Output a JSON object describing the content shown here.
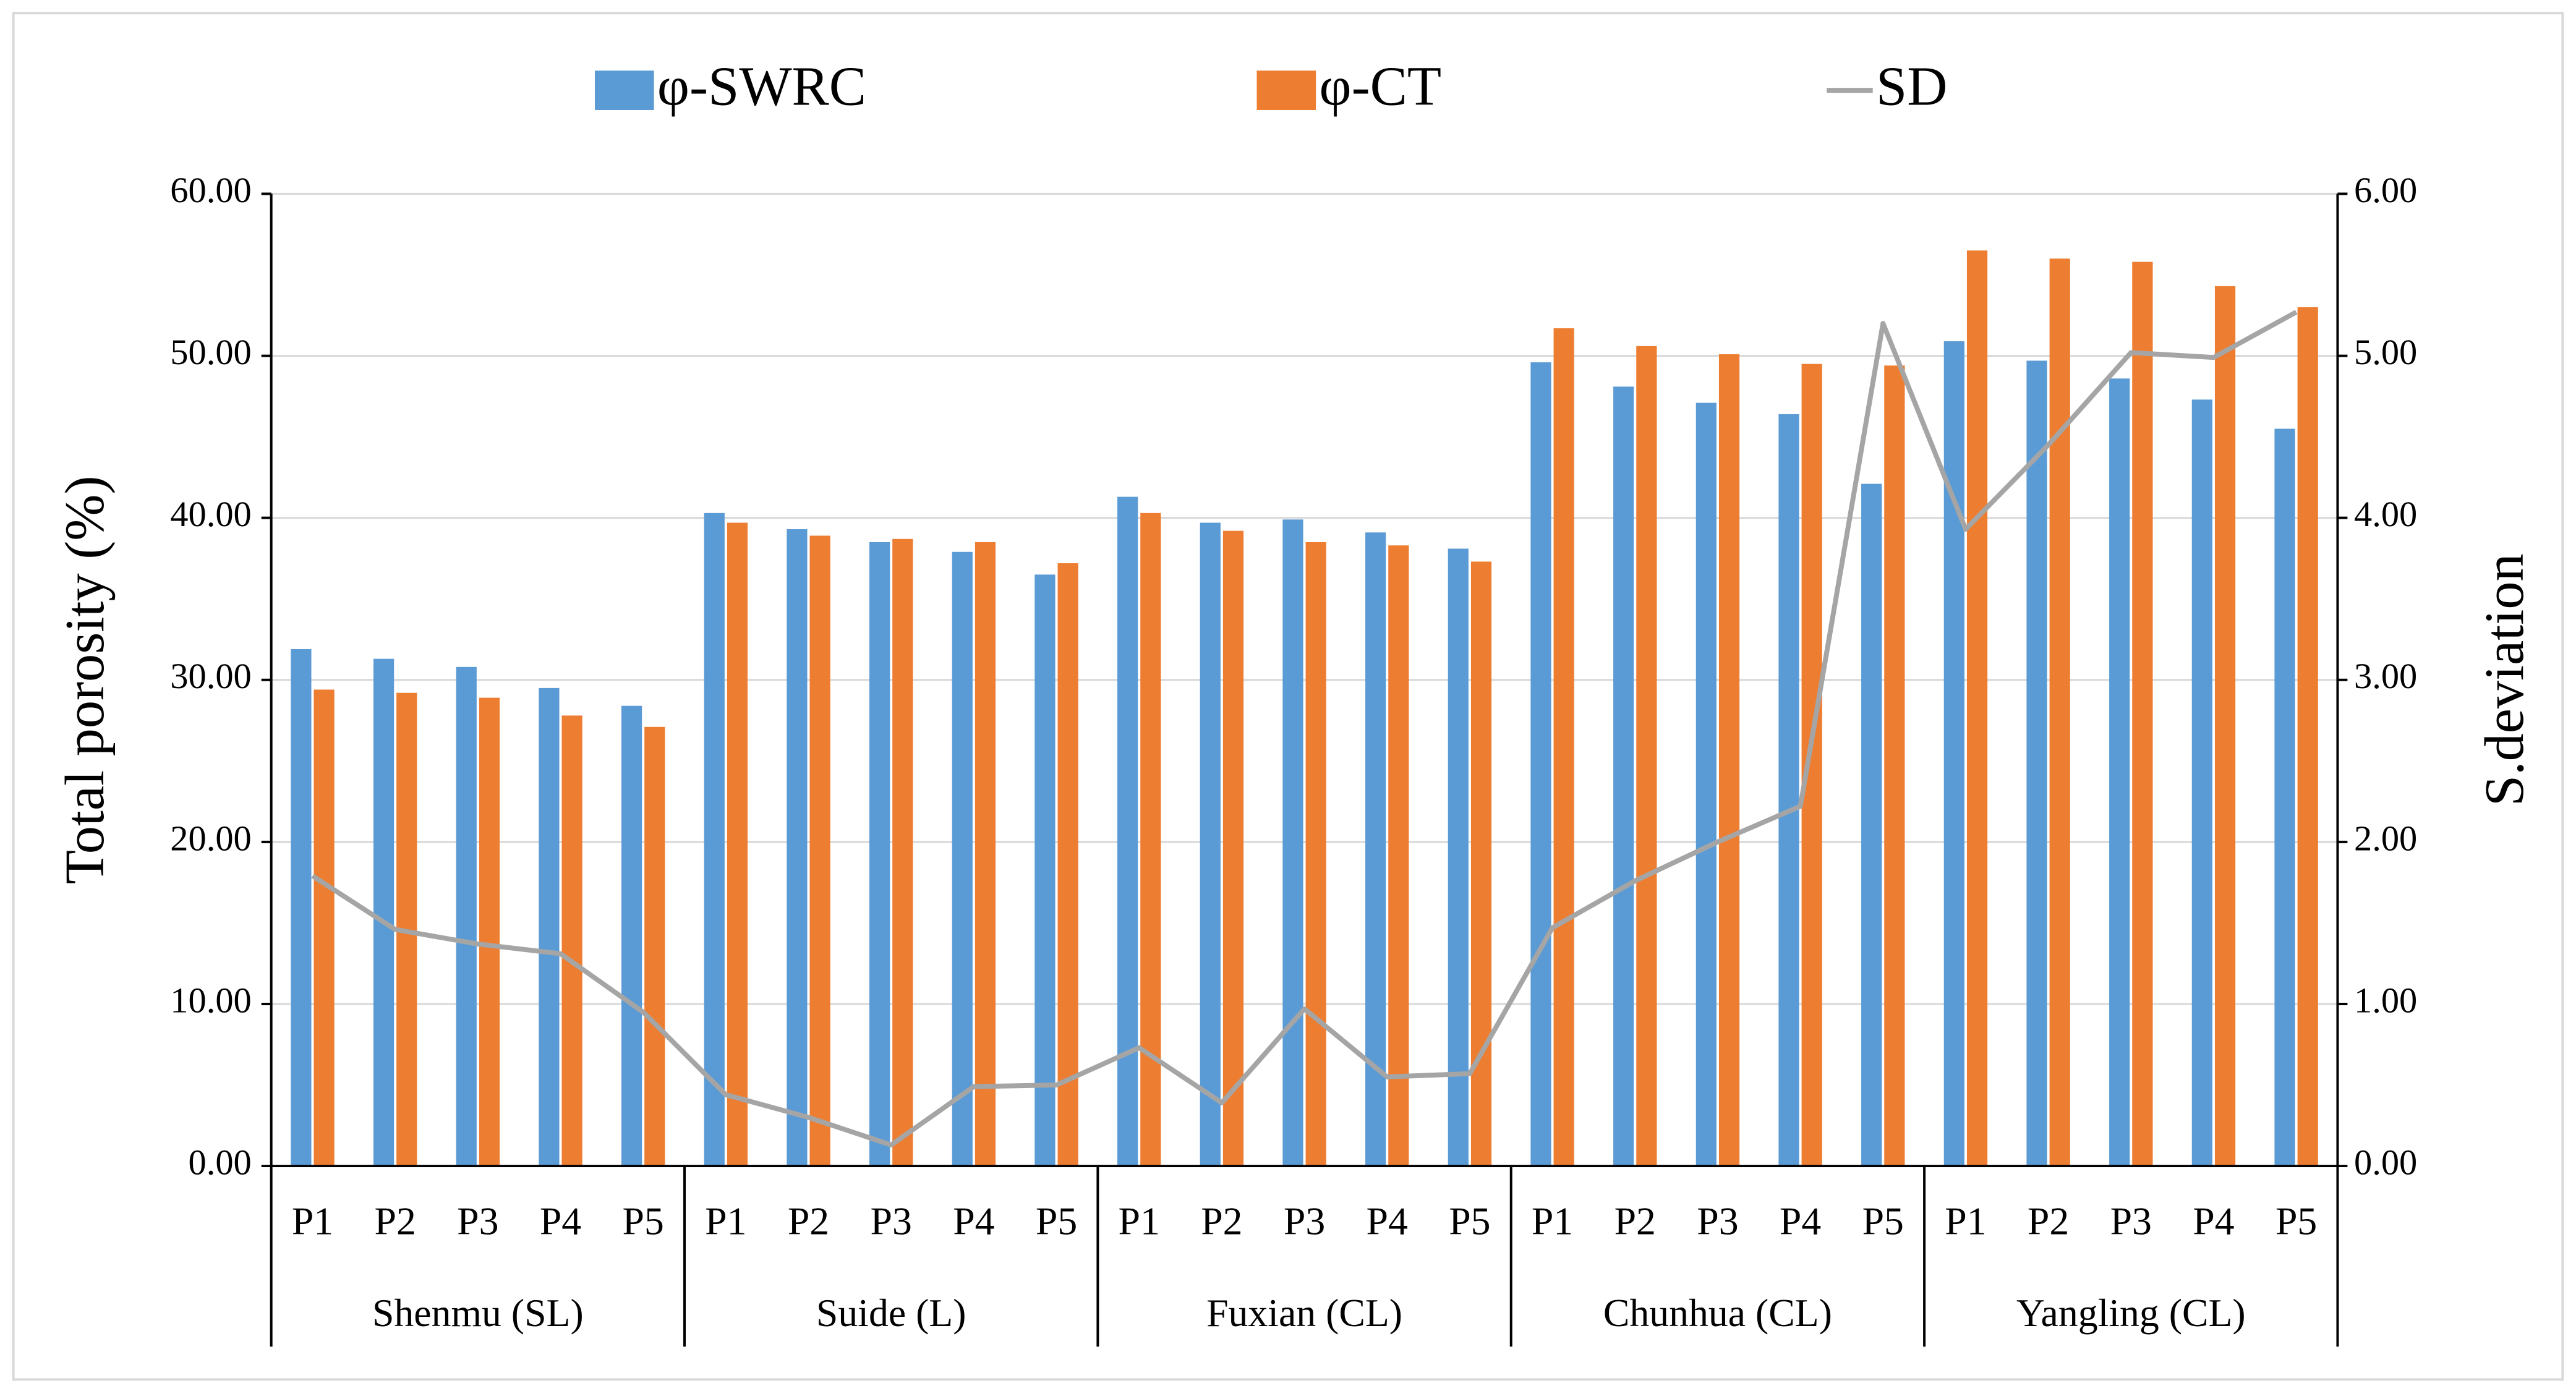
{
  "chart_data": {
    "type": "bar_line",
    "y_label": "Total porosity (%)",
    "y2_label": "S.deviation",
    "categories": [
      "P1",
      "P2",
      "P3",
      "P4",
      "P5",
      "P1",
      "P2",
      "P3",
      "P4",
      "P5",
      "P1",
      "P2",
      "P3",
      "P4",
      "P5",
      "P1",
      "P2",
      "P3",
      "P4",
      "P5",
      "P1",
      "P2",
      "P3",
      "P4",
      "P5"
    ],
    "groups": [
      "Shenmu (SL)",
      "Suide (L)",
      "Fuxian (CL)",
      "Chunhua (CL)",
      "Yangling (CL)"
    ],
    "series": [
      {
        "name": "φ-SWRC",
        "color": "#5b9bd5",
        "kind": "bar",
        "values": [
          31.9,
          31.3,
          30.8,
          29.5,
          28.4,
          40.3,
          39.3,
          38.5,
          37.9,
          36.5,
          41.3,
          39.7,
          39.9,
          39.1,
          38.1,
          49.6,
          48.1,
          47.1,
          46.4,
          42.1,
          50.9,
          49.7,
          48.6,
          47.3,
          45.5
        ]
      },
      {
        "name": "φ-CT",
        "color": "#ed7d31",
        "kind": "bar",
        "values": [
          29.4,
          29.2,
          28.9,
          27.8,
          27.1,
          39.7,
          38.9,
          38.7,
          38.5,
          37.2,
          40.3,
          39.2,
          38.5,
          38.3,
          37.3,
          51.7,
          50.6,
          50.1,
          49.5,
          49.4,
          56.5,
          56.0,
          55.8,
          54.3,
          53.0
        ]
      },
      {
        "name": "SD",
        "color": "#a5a5a5",
        "kind": "line",
        "axis": "y2",
        "values": [
          1.79,
          1.46,
          1.37,
          1.31,
          0.95,
          0.44,
          0.3,
          0.13,
          0.49,
          0.5,
          0.73,
          0.39,
          0.97,
          0.55,
          0.57,
          1.47,
          1.76,
          2.0,
          2.22,
          5.2,
          3.93,
          4.45,
          5.02,
          4.99,
          5.27
        ]
      }
    ],
    "ylim": [
      0,
      60
    ],
    "yticks": [
      {
        "value": 0,
        "label": "0.00"
      },
      {
        "value": 10,
        "label": "10.00"
      },
      {
        "value": 20,
        "label": "20.00"
      },
      {
        "value": 30,
        "label": "30.00"
      },
      {
        "value": 40,
        "label": "40.00"
      },
      {
        "value": 50,
        "label": "50.00"
      },
      {
        "value": 60,
        "label": "60.00"
      }
    ],
    "y2lim": [
      0,
      6
    ],
    "y2ticks": [
      {
        "value": 0,
        "label": "0.00"
      },
      {
        "value": 1,
        "label": "1.00"
      },
      {
        "value": 2,
        "label": "2.00"
      },
      {
        "value": 3,
        "label": "3.00"
      },
      {
        "value": 4,
        "label": "4.00"
      },
      {
        "value": 5,
        "label": "5.00"
      },
      {
        "value": 6,
        "label": "6.00"
      }
    ],
    "grid": true,
    "legend": "top"
  }
}
